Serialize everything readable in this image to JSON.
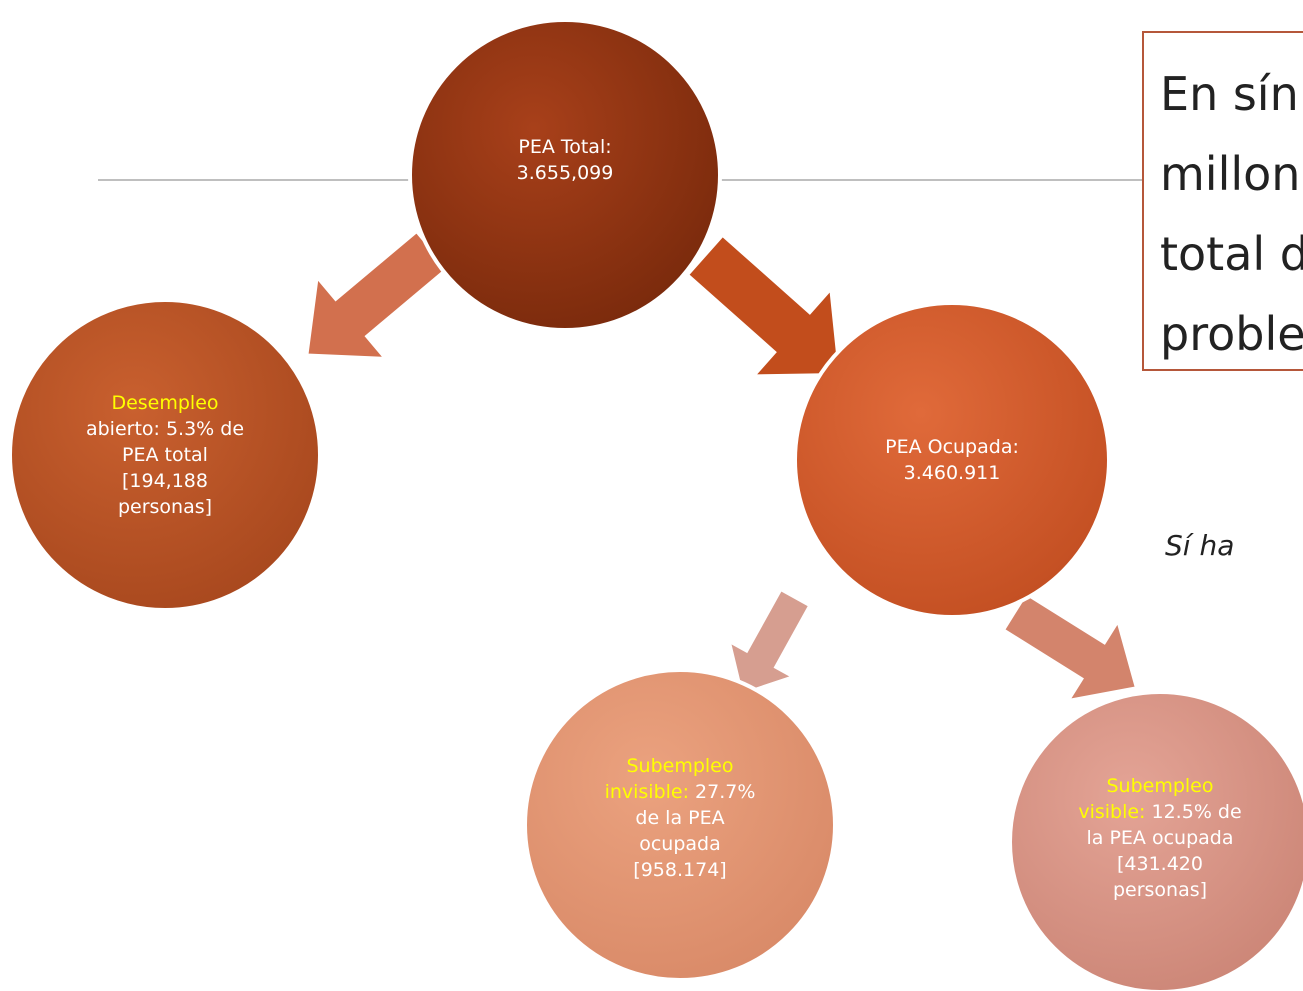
{
  "nodes": [
    {
      "lines": [
        [
          {
            "text": "PEA Total:"
          }
        ],
        [
          {
            "text": "3.655,099"
          }
        ]
      ]
    },
    {
      "lines": [
        [
          {
            "text": "Desempleo",
            "highlight": true
          }
        ],
        [
          {
            "text": "abierto: 5.3% de"
          }
        ],
        [
          {
            "text": "PEA total"
          }
        ],
        [
          {
            "text": "[194,188"
          }
        ],
        [
          {
            "text": "personas]"
          }
        ]
      ]
    },
    {
      "lines": [
        [
          {
            "text": "PEA Ocupada:"
          }
        ],
        [
          {
            "text": "3.460.911"
          }
        ]
      ]
    },
    {
      "lines": [
        [
          {
            "text": "Subempleo",
            "highlight": true
          }
        ],
        [
          {
            "text": "invisible:",
            "highlight": true
          },
          {
            "text": " 27.7%"
          }
        ],
        [
          {
            "text": "de la PEA"
          }
        ],
        [
          {
            "text": "ocupada"
          }
        ],
        [
          {
            "text": "[958.174]"
          }
        ]
      ]
    },
    {
      "lines": [
        [
          {
            "text": "Subempleo",
            "highlight": true
          }
        ],
        [
          {
            "text": "visible:",
            "highlight": true
          },
          {
            "text": " 12.5% de"
          }
        ],
        [
          {
            "text": "la PEA ocupada"
          }
        ],
        [
          {
            "text": "[431.420"
          }
        ],
        [
          {
            "text": "personas]"
          }
        ]
      ]
    }
  ],
  "callout": {
    "lines": [
      "En sín",
      "millon",
      "total d",
      "proble"
    ]
  },
  "note": "Sí ha"
}
